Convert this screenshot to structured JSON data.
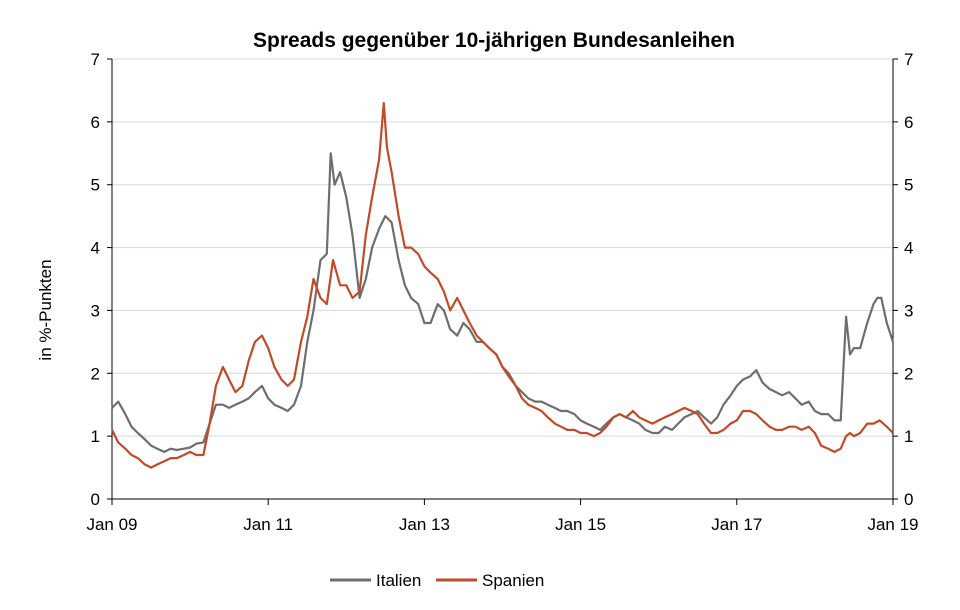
{
  "chart_data": {
    "type": "line",
    "title": "Spreads gegenüber 10-jährigen Bundesanleihen",
    "ylabel": "in %-Punkten",
    "ylabel_right": "",
    "xlabel": "",
    "ylim": [
      0,
      7
    ],
    "yticks": [
      "0",
      "1",
      "2",
      "3",
      "4",
      "5",
      "6",
      "7"
    ],
    "xlim": [
      2009.0,
      2019.0
    ],
    "xticks": [
      {
        "label": "Jan 09",
        "x": 2009.0
      },
      {
        "label": "Jan 11",
        "x": 2011.0
      },
      {
        "label": "Jan 13",
        "x": 2013.0
      },
      {
        "label": "Jan 15",
        "x": 2015.0
      },
      {
        "label": "Jan 17",
        "x": 2017.0
      },
      {
        "label": "Jan 19",
        "x": 2019.0
      }
    ],
    "grid": "horizontal",
    "legend": "bottom",
    "series": [
      {
        "name": "Italien",
        "color": "#6e6e6e",
        "points": [
          [
            2009.0,
            1.45
          ],
          [
            2009.08,
            1.55
          ],
          [
            2009.17,
            1.35
          ],
          [
            2009.25,
            1.15
          ],
          [
            2009.33,
            1.05
          ],
          [
            2009.42,
            0.95
          ],
          [
            2009.5,
            0.85
          ],
          [
            2009.58,
            0.8
          ],
          [
            2009.67,
            0.75
          ],
          [
            2009.75,
            0.8
          ],
          [
            2009.83,
            0.78
          ],
          [
            2009.92,
            0.8
          ],
          [
            2010.0,
            0.82
          ],
          [
            2010.08,
            0.88
          ],
          [
            2010.17,
            0.9
          ],
          [
            2010.25,
            1.2
          ],
          [
            2010.33,
            1.5
          ],
          [
            2010.42,
            1.5
          ],
          [
            2010.5,
            1.45
          ],
          [
            2010.58,
            1.5
          ],
          [
            2010.67,
            1.55
          ],
          [
            2010.75,
            1.6
          ],
          [
            2010.83,
            1.7
          ],
          [
            2010.92,
            1.8
          ],
          [
            2011.0,
            1.6
          ],
          [
            2011.08,
            1.5
          ],
          [
            2011.17,
            1.45
          ],
          [
            2011.25,
            1.4
          ],
          [
            2011.33,
            1.5
          ],
          [
            2011.42,
            1.8
          ],
          [
            2011.5,
            2.5
          ],
          [
            2011.58,
            3.0
          ],
          [
            2011.67,
            3.8
          ],
          [
            2011.75,
            3.9
          ],
          [
            2011.8,
            5.5
          ],
          [
            2011.85,
            5.0
          ],
          [
            2011.92,
            5.2
          ],
          [
            2012.0,
            4.8
          ],
          [
            2012.08,
            4.2
          ],
          [
            2012.17,
            3.2
          ],
          [
            2012.25,
            3.5
          ],
          [
            2012.33,
            4.0
          ],
          [
            2012.42,
            4.3
          ],
          [
            2012.5,
            4.5
          ],
          [
            2012.58,
            4.4
          ],
          [
            2012.67,
            3.8
          ],
          [
            2012.75,
            3.4
          ],
          [
            2012.83,
            3.2
          ],
          [
            2012.92,
            3.1
          ],
          [
            2013.0,
            2.8
          ],
          [
            2013.08,
            2.8
          ],
          [
            2013.17,
            3.1
          ],
          [
            2013.25,
            3.0
          ],
          [
            2013.33,
            2.7
          ],
          [
            2013.42,
            2.6
          ],
          [
            2013.5,
            2.8
          ],
          [
            2013.58,
            2.7
          ],
          [
            2013.67,
            2.5
          ],
          [
            2013.75,
            2.5
          ],
          [
            2013.83,
            2.4
          ],
          [
            2013.92,
            2.3
          ],
          [
            2014.0,
            2.1
          ],
          [
            2014.08,
            2.0
          ],
          [
            2014.17,
            1.8
          ],
          [
            2014.25,
            1.7
          ],
          [
            2014.33,
            1.6
          ],
          [
            2014.42,
            1.55
          ],
          [
            2014.5,
            1.55
          ],
          [
            2014.58,
            1.5
          ],
          [
            2014.67,
            1.45
          ],
          [
            2014.75,
            1.4
          ],
          [
            2014.83,
            1.4
          ],
          [
            2014.92,
            1.35
          ],
          [
            2015.0,
            1.25
          ],
          [
            2015.08,
            1.2
          ],
          [
            2015.17,
            1.15
          ],
          [
            2015.25,
            1.1
          ],
          [
            2015.33,
            1.2
          ],
          [
            2015.42,
            1.3
          ],
          [
            2015.5,
            1.35
          ],
          [
            2015.58,
            1.3
          ],
          [
            2015.67,
            1.25
          ],
          [
            2015.75,
            1.2
          ],
          [
            2015.83,
            1.1
          ],
          [
            2015.92,
            1.05
          ],
          [
            2016.0,
            1.05
          ],
          [
            2016.08,
            1.15
          ],
          [
            2016.17,
            1.1
          ],
          [
            2016.25,
            1.2
          ],
          [
            2016.33,
            1.3
          ],
          [
            2016.42,
            1.35
          ],
          [
            2016.5,
            1.4
          ],
          [
            2016.58,
            1.3
          ],
          [
            2016.67,
            1.2
          ],
          [
            2016.75,
            1.3
          ],
          [
            2016.83,
            1.5
          ],
          [
            2016.92,
            1.65
          ],
          [
            2017.0,
            1.8
          ],
          [
            2017.08,
            1.9
          ],
          [
            2017.17,
            1.95
          ],
          [
            2017.25,
            2.05
          ],
          [
            2017.33,
            1.85
          ],
          [
            2017.42,
            1.75
          ],
          [
            2017.5,
            1.7
          ],
          [
            2017.58,
            1.65
          ],
          [
            2017.67,
            1.7
          ],
          [
            2017.75,
            1.6
          ],
          [
            2017.83,
            1.5
          ],
          [
            2017.92,
            1.55
          ],
          [
            2018.0,
            1.4
          ],
          [
            2018.08,
            1.35
          ],
          [
            2018.17,
            1.35
          ],
          [
            2018.25,
            1.25
          ],
          [
            2018.33,
            1.25
          ],
          [
            2018.4,
            2.9
          ],
          [
            2018.45,
            2.3
          ],
          [
            2018.5,
            2.4
          ],
          [
            2018.58,
            2.4
          ],
          [
            2018.67,
            2.8
          ],
          [
            2018.75,
            3.1
          ],
          [
            2018.8,
            3.2
          ],
          [
            2018.85,
            3.2
          ],
          [
            2018.92,
            2.8
          ],
          [
            2019.0,
            2.5
          ]
        ]
      },
      {
        "name": "Spanien",
        "color": "#c24a26",
        "points": [
          [
            2009.0,
            1.1
          ],
          [
            2009.08,
            0.9
          ],
          [
            2009.17,
            0.8
          ],
          [
            2009.25,
            0.7
          ],
          [
            2009.33,
            0.65
          ],
          [
            2009.42,
            0.55
          ],
          [
            2009.5,
            0.5
          ],
          [
            2009.58,
            0.55
          ],
          [
            2009.67,
            0.6
          ],
          [
            2009.75,
            0.65
          ],
          [
            2009.83,
            0.65
          ],
          [
            2009.92,
            0.7
          ],
          [
            2010.0,
            0.75
          ],
          [
            2010.08,
            0.7
          ],
          [
            2010.17,
            0.7
          ],
          [
            2010.25,
            1.2
          ],
          [
            2010.33,
            1.8
          ],
          [
            2010.42,
            2.1
          ],
          [
            2010.5,
            1.9
          ],
          [
            2010.58,
            1.7
          ],
          [
            2010.67,
            1.8
          ],
          [
            2010.75,
            2.2
          ],
          [
            2010.83,
            2.5
          ],
          [
            2010.92,
            2.6
          ],
          [
            2011.0,
            2.4
          ],
          [
            2011.08,
            2.1
          ],
          [
            2011.17,
            1.9
          ],
          [
            2011.25,
            1.8
          ],
          [
            2011.33,
            1.9
          ],
          [
            2011.42,
            2.5
          ],
          [
            2011.5,
            2.9
          ],
          [
            2011.58,
            3.5
          ],
          [
            2011.67,
            3.2
          ],
          [
            2011.75,
            3.1
          ],
          [
            2011.83,
            3.8
          ],
          [
            2011.92,
            3.4
          ],
          [
            2012.0,
            3.4
          ],
          [
            2012.08,
            3.2
          ],
          [
            2012.17,
            3.3
          ],
          [
            2012.25,
            4.2
          ],
          [
            2012.33,
            4.8
          ],
          [
            2012.42,
            5.4
          ],
          [
            2012.48,
            6.3
          ],
          [
            2012.52,
            5.6
          ],
          [
            2012.58,
            5.2
          ],
          [
            2012.67,
            4.5
          ],
          [
            2012.75,
            4.0
          ],
          [
            2012.83,
            4.0
          ],
          [
            2012.92,
            3.9
          ],
          [
            2013.0,
            3.7
          ],
          [
            2013.08,
            3.6
          ],
          [
            2013.17,
            3.5
          ],
          [
            2013.25,
            3.3
          ],
          [
            2013.33,
            3.0
          ],
          [
            2013.42,
            3.2
          ],
          [
            2013.5,
            3.0
          ],
          [
            2013.58,
            2.8
          ],
          [
            2013.67,
            2.6
          ],
          [
            2013.75,
            2.5
          ],
          [
            2013.83,
            2.4
          ],
          [
            2013.92,
            2.3
          ],
          [
            2014.0,
            2.1
          ],
          [
            2014.08,
            1.95
          ],
          [
            2014.17,
            1.8
          ],
          [
            2014.25,
            1.6
          ],
          [
            2014.33,
            1.5
          ],
          [
            2014.42,
            1.45
          ],
          [
            2014.5,
            1.4
          ],
          [
            2014.58,
            1.3
          ],
          [
            2014.67,
            1.2
          ],
          [
            2014.75,
            1.15
          ],
          [
            2014.83,
            1.1
          ],
          [
            2014.92,
            1.1
          ],
          [
            2015.0,
            1.05
          ],
          [
            2015.08,
            1.05
          ],
          [
            2015.17,
            1.0
          ],
          [
            2015.25,
            1.05
          ],
          [
            2015.33,
            1.15
          ],
          [
            2015.42,
            1.3
          ],
          [
            2015.5,
            1.35
          ],
          [
            2015.58,
            1.3
          ],
          [
            2015.67,
            1.4
          ],
          [
            2015.75,
            1.3
          ],
          [
            2015.83,
            1.25
          ],
          [
            2015.92,
            1.2
          ],
          [
            2016.0,
            1.25
          ],
          [
            2016.08,
            1.3
          ],
          [
            2016.17,
            1.35
          ],
          [
            2016.25,
            1.4
          ],
          [
            2016.33,
            1.45
          ],
          [
            2016.42,
            1.4
          ],
          [
            2016.5,
            1.35
          ],
          [
            2016.58,
            1.2
          ],
          [
            2016.67,
            1.05
          ],
          [
            2016.75,
            1.05
          ],
          [
            2016.83,
            1.1
          ],
          [
            2016.92,
            1.2
          ],
          [
            2017.0,
            1.25
          ],
          [
            2017.08,
            1.4
          ],
          [
            2017.17,
            1.4
          ],
          [
            2017.25,
            1.35
          ],
          [
            2017.33,
            1.25
          ],
          [
            2017.42,
            1.15
          ],
          [
            2017.5,
            1.1
          ],
          [
            2017.58,
            1.1
          ],
          [
            2017.67,
            1.15
          ],
          [
            2017.75,
            1.15
          ],
          [
            2017.83,
            1.1
          ],
          [
            2017.92,
            1.15
          ],
          [
            2018.0,
            1.05
          ],
          [
            2018.08,
            0.85
          ],
          [
            2018.17,
            0.8
          ],
          [
            2018.25,
            0.75
          ],
          [
            2018.33,
            0.8
          ],
          [
            2018.4,
            1.0
          ],
          [
            2018.45,
            1.05
          ],
          [
            2018.5,
            1.0
          ],
          [
            2018.58,
            1.05
          ],
          [
            2018.67,
            1.2
          ],
          [
            2018.75,
            1.2
          ],
          [
            2018.83,
            1.25
          ],
          [
            2018.92,
            1.15
          ],
          [
            2019.0,
            1.05
          ]
        ]
      }
    ]
  }
}
